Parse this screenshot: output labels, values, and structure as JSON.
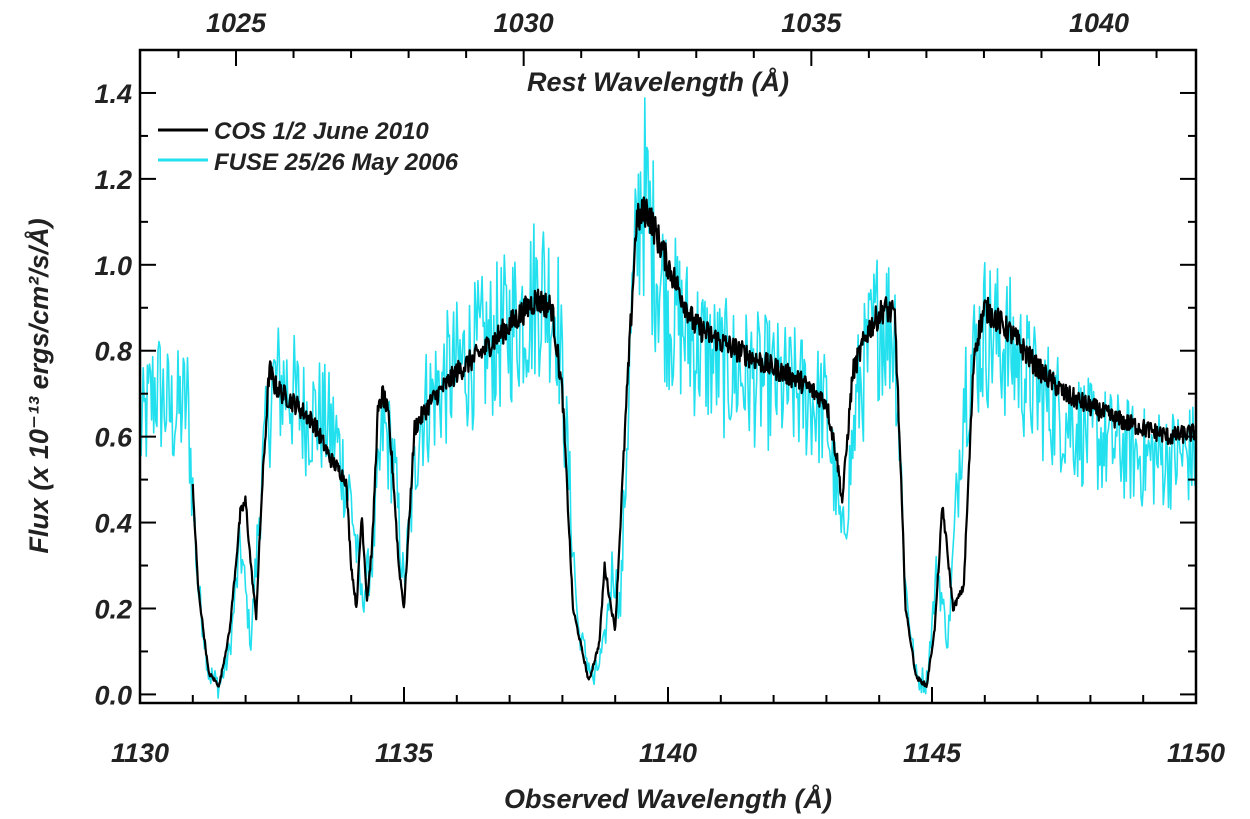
{
  "chart_data": {
    "type": "line",
    "title": "",
    "xlabel": "Observed Wavelength (Å)",
    "top_xlabel": "Rest Wavelength (Å)",
    "ylabel": "Flux (x 10⁻¹³ ergs/cm²/s/Å)",
    "xlim": [
      1130,
      1150
    ],
    "ylim": [
      -0.02,
      1.5
    ],
    "x_ticks": [
      "1130",
      "1135",
      "1140",
      "1145",
      "1150"
    ],
    "x_tick_values": [
      1130,
      1135,
      1140,
      1145,
      1150
    ],
    "top_ticks": [
      "1025",
      "1030",
      "1035",
      "1040"
    ],
    "top_tick_values": [
      1025,
      1030,
      1035,
      1040
    ],
    "y_ticks": [
      "0.0",
      "0.2",
      "0.4",
      "0.6",
      "0.8",
      "1.0",
      "1.2",
      "1.4"
    ],
    "y_tick_values": [
      0.0,
      0.2,
      0.4,
      0.6,
      0.8,
      1.0,
      1.2,
      1.4
    ],
    "grid": false,
    "legend_position": "top-left",
    "series": [
      {
        "name": "COS 1/2 June 2010",
        "color": "#000000",
        "x": [
          1131.0,
          1131.1,
          1131.3,
          1131.5,
          1131.7,
          1131.9,
          1132.0,
          1132.1,
          1132.2,
          1132.3,
          1132.45,
          1132.55,
          1132.7,
          1133.0,
          1133.3,
          1133.6,
          1133.9,
          1134.0,
          1134.1,
          1134.2,
          1134.3,
          1134.4,
          1134.5,
          1134.6,
          1134.7,
          1134.8,
          1134.9,
          1135.0,
          1135.2,
          1135.5,
          1136.0,
          1136.5,
          1137.0,
          1137.5,
          1137.8,
          1138.0,
          1138.2,
          1138.5,
          1138.7,
          1138.8,
          1138.9,
          1139.0,
          1139.2,
          1139.4,
          1139.6,
          1140.0,
          1140.5,
          1141.0,
          1141.5,
          1142.0,
          1142.5,
          1143.0,
          1143.2,
          1143.3,
          1143.5,
          1143.8,
          1144.1,
          1144.3,
          1144.5,
          1144.7,
          1144.9,
          1145.05,
          1145.2,
          1145.4,
          1145.6,
          1145.8,
          1146.0,
          1146.5,
          1147.0,
          1147.5,
          1148.0,
          1148.5,
          1149.0,
          1149.5,
          1150.0
        ],
        "values": [
          0.48,
          0.25,
          0.05,
          0.02,
          0.15,
          0.42,
          0.45,
          0.3,
          0.18,
          0.45,
          0.76,
          0.72,
          0.7,
          0.67,
          0.63,
          0.55,
          0.5,
          0.3,
          0.2,
          0.42,
          0.22,
          0.35,
          0.65,
          0.7,
          0.65,
          0.5,
          0.3,
          0.2,
          0.62,
          0.68,
          0.75,
          0.8,
          0.86,
          0.92,
          0.9,
          0.7,
          0.2,
          0.03,
          0.12,
          0.3,
          0.22,
          0.15,
          0.65,
          1.1,
          1.13,
          1.0,
          0.86,
          0.82,
          0.79,
          0.76,
          0.73,
          0.68,
          0.55,
          0.45,
          0.75,
          0.85,
          0.9,
          0.88,
          0.2,
          0.04,
          0.02,
          0.15,
          0.44,
          0.2,
          0.25,
          0.8,
          0.9,
          0.84,
          0.76,
          0.7,
          0.67,
          0.64,
          0.62,
          0.6,
          0.61
        ]
      },
      {
        "name": "FUSE 25/26 May 2006",
        "color": "#22e0ee",
        "x": [
          1130.0,
          1130.3,
          1130.6,
          1130.9,
          1131.1,
          1131.3,
          1131.5,
          1131.7,
          1131.9,
          1132.1,
          1132.3,
          1132.5,
          1132.8,
          1133.1,
          1133.4,
          1133.7,
          1134.0,
          1134.2,
          1134.4,
          1134.6,
          1134.8,
          1135.0,
          1135.3,
          1135.7,
          1136.2,
          1136.7,
          1137.2,
          1137.6,
          1137.9,
          1138.1,
          1138.3,
          1138.6,
          1138.8,
          1138.95,
          1139.1,
          1139.3,
          1139.5,
          1139.7,
          1140.0,
          1140.5,
          1141.0,
          1141.5,
          1142.0,
          1142.5,
          1143.0,
          1143.3,
          1143.6,
          1144.0,
          1144.3,
          1144.5,
          1144.7,
          1144.9,
          1145.1,
          1145.3,
          1145.6,
          1146.0,
          1146.5,
          1147.0,
          1147.5,
          1148.0,
          1148.5,
          1149.0,
          1149.5,
          1150.0
        ],
        "values": [
          0.6,
          0.72,
          0.65,
          0.68,
          0.25,
          0.05,
          0.02,
          0.1,
          0.35,
          0.12,
          0.5,
          0.72,
          0.72,
          0.65,
          0.65,
          0.6,
          0.45,
          0.22,
          0.32,
          0.62,
          0.55,
          0.25,
          0.65,
          0.72,
          0.78,
          0.82,
          0.88,
          0.95,
          0.9,
          0.55,
          0.15,
          0.03,
          0.12,
          0.3,
          0.2,
          0.85,
          1.2,
          1.05,
          0.9,
          0.82,
          0.76,
          0.74,
          0.72,
          0.7,
          0.66,
          0.35,
          0.7,
          0.88,
          0.85,
          0.25,
          0.04,
          0.03,
          0.3,
          0.12,
          0.72,
          0.85,
          0.8,
          0.7,
          0.65,
          0.6,
          0.58,
          0.55,
          0.55,
          0.56
        ]
      }
    ]
  }
}
